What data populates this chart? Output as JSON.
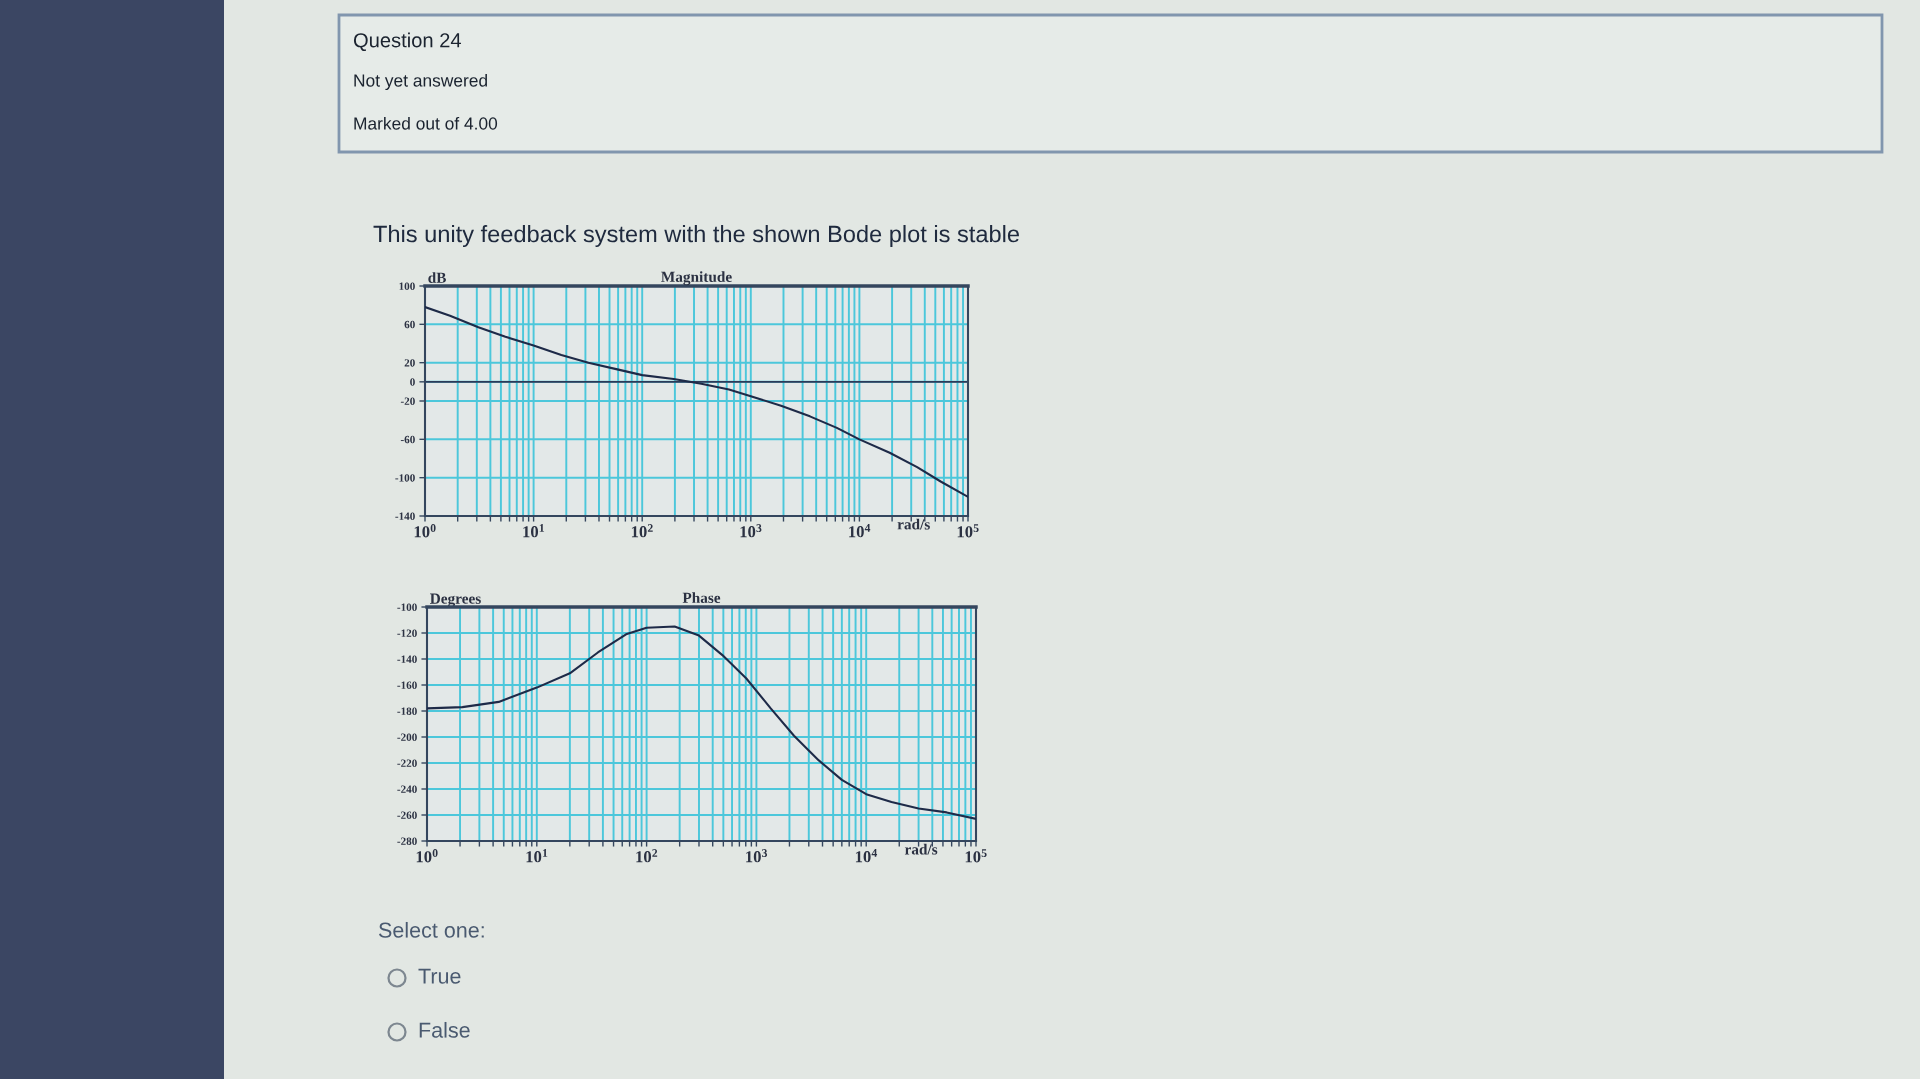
{
  "chart_data": [
    {
      "type": "other",
      "annotations": [
        "Question 24",
        "Not yet answered",
        "Marked out of 4.00"
      ]
    },
    {
      "type": "other",
      "title": "This unity feedback system with the shown Bode plot is stable"
    },
    {
      "type": "line",
      "title": "Magnitude",
      "ylabel": "dB",
      "xlabel": "rad/s",
      "log": "x",
      "grid": true,
      "line_style": "solid",
      "x": [
        1,
        1.7,
        3.1,
        5.5,
        10,
        18,
        32,
        59,
        100,
        195,
        350,
        630,
        1000,
        1900,
        3500,
        6200,
        10000,
        19000,
        34000,
        56000,
        100000
      ],
      "series": [
        {
          "color": "#1e2a48",
          "values": [
            78,
            69,
            57,
            47,
            38,
            28,
            20,
            13,
            7,
            3,
            -2,
            -8,
            -15,
            -25,
            -36,
            -48,
            -60,
            -74,
            -89,
            -104,
            -120
          ]
        }
      ],
      "xlim": [
        1,
        100000
      ],
      "ylim": [
        -140,
        100
      ],
      "xticks": [
        {
          "value": 1,
          "label": "10$^{0}$"
        },
        {
          "value": 2,
          "label": null
        },
        {
          "value": 3,
          "label": null
        },
        {
          "value": 4,
          "label": null
        },
        {
          "value": 5,
          "label": null
        },
        {
          "value": 6,
          "label": null
        },
        {
          "value": 7,
          "label": null
        },
        {
          "value": 8,
          "label": null
        },
        {
          "value": 9,
          "label": null
        },
        {
          "value": 10,
          "label": "10$^{1}$"
        },
        {
          "value": 20,
          "label": null
        },
        {
          "value": 30,
          "label": null
        },
        {
          "value": 40,
          "label": null
        },
        {
          "value": 50,
          "label": null
        },
        {
          "value": 60,
          "label": null
        },
        {
          "value": 70,
          "label": null
        },
        {
          "value": 80,
          "label": null
        },
        {
          "value": 90,
          "label": null
        },
        {
          "value": 100,
          "label": "10$^{2}$"
        },
        {
          "value": 200,
          "label": null
        },
        {
          "value": 300,
          "label": null
        },
        {
          "value": 400,
          "label": null
        },
        {
          "value": 500,
          "label": null
        },
        {
          "value": 600,
          "label": null
        },
        {
          "value": 700,
          "label": null
        },
        {
          "value": 800,
          "label": null
        },
        {
          "value": 900,
          "label": null
        },
        {
          "value": 1000,
          "label": "10$^{3}$"
        },
        {
          "value": 2000,
          "label": null
        },
        {
          "value": 3000,
          "label": null
        },
        {
          "value": 4000,
          "label": null
        },
        {
          "value": 5000,
          "label": null
        },
        {
          "value": 6000,
          "label": null
        },
        {
          "value": 7000,
          "label": null
        },
        {
          "value": 8000,
          "label": null
        },
        {
          "value": 9000,
          "label": null
        },
        {
          "value": 10000,
          "label": "10$^{4}$"
        },
        {
          "value": 20000,
          "label": null
        },
        {
          "value": 30000,
          "label": null
        },
        {
          "value": 40000,
          "label": null
        },
        {
          "value": 50000,
          "label": null
        },
        {
          "value": 60000,
          "label": null
        },
        {
          "value": 70000,
          "label": null
        },
        {
          "value": 80000,
          "label": null
        },
        {
          "value": 90000,
          "label": null
        },
        {
          "value": 100000,
          "label": "10$^{5}$"
        }
      ],
      "yticks": [
        -140,
        -100,
        -60,
        -20,
        0,
        20,
        60,
        100
      ],
      "ref_lines": [
        {
          "axis": "y",
          "value": 0,
          "color": "#2c3a58"
        }
      ]
    },
    {
      "type": "line",
      "title": "Phase",
      "ylabel": "Degrees",
      "xlabel": "rad/s",
      "log": "x",
      "grid": true,
      "line_style": "solid",
      "x": [
        1,
        2.1,
        4.5,
        10,
        20,
        36,
        65,
        100,
        180,
        300,
        490,
        810,
        1350,
        2200,
        3700,
        6000,
        10000,
        17000,
        30000,
        54000,
        100000
      ],
      "series": [
        {
          "color": "#1e2a48",
          "values": [
            -178,
            -177,
            -173,
            -162,
            -151,
            -135,
            -121,
            -116,
            -115,
            -122,
            -137,
            -155,
            -178,
            -199,
            -218,
            -233,
            -244,
            -250,
            -255,
            -258,
            -263
          ]
        }
      ],
      "xlim": [
        1,
        100000
      ],
      "ylim": [
        -280,
        -100
      ],
      "xticks": [
        {
          "value": 1,
          "label": "10$^{0}$"
        },
        {
          "value": 2,
          "label": null
        },
        {
          "value": 3,
          "label": null
        },
        {
          "value": 4,
          "label": null
        },
        {
          "value": 5,
          "label": null
        },
        {
          "value": 6,
          "label": null
        },
        {
          "value": 7,
          "label": null
        },
        {
          "value": 8,
          "label": null
        },
        {
          "value": 9,
          "label": null
        },
        {
          "value": 10,
          "label": "10$^{1}$"
        },
        {
          "value": 20,
          "label": null
        },
        {
          "value": 30,
          "label": null
        },
        {
          "value": 40,
          "label": null
        },
        {
          "value": 50,
          "label": null
        },
        {
          "value": 60,
          "label": null
        },
        {
          "value": 70,
          "label": null
        },
        {
          "value": 80,
          "label": null
        },
        {
          "value": 90,
          "label": null
        },
        {
          "value": 100,
          "label": "10$^{2}$"
        },
        {
          "value": 200,
          "label": null
        },
        {
          "value": 300,
          "label": null
        },
        {
          "value": 400,
          "label": null
        },
        {
          "value": 500,
          "label": null
        },
        {
          "value": 600,
          "label": null
        },
        {
          "value": 700,
          "label": null
        },
        {
          "value": 800,
          "label": null
        },
        {
          "value": 900,
          "label": null
        },
        {
          "value": 1000,
          "label": "10$^{3}$"
        },
        {
          "value": 2000,
          "label": null
        },
        {
          "value": 3000,
          "label": null
        },
        {
          "value": 4000,
          "label": null
        },
        {
          "value": 5000,
          "label": null
        },
        {
          "value": 6000,
          "label": null
        },
        {
          "value": 7000,
          "label": null
        },
        {
          "value": 8000,
          "label": null
        },
        {
          "value": 9000,
          "label": null
        },
        {
          "value": 10000,
          "label": "10$^{4}$"
        },
        {
          "value": 20000,
          "label": null
        },
        {
          "value": 30000,
          "label": null
        },
        {
          "value": 40000,
          "label": null
        },
        {
          "value": 50000,
          "label": null
        },
        {
          "value": 60000,
          "label": null
        },
        {
          "value": 70000,
          "label": null
        },
        {
          "value": 80000,
          "label": null
        },
        {
          "value": 90000,
          "label": null
        },
        {
          "value": 100000,
          "label": "10$^{5}$"
        }
      ],
      "yticks": [
        -280,
        -260,
        -240,
        -220,
        -200,
        -180,
        -160,
        -140,
        -120,
        -100
      ]
    },
    {
      "type": "other",
      "annotations": [
        "Select one:",
        "True",
        "False"
      ]
    }
  ]
}
